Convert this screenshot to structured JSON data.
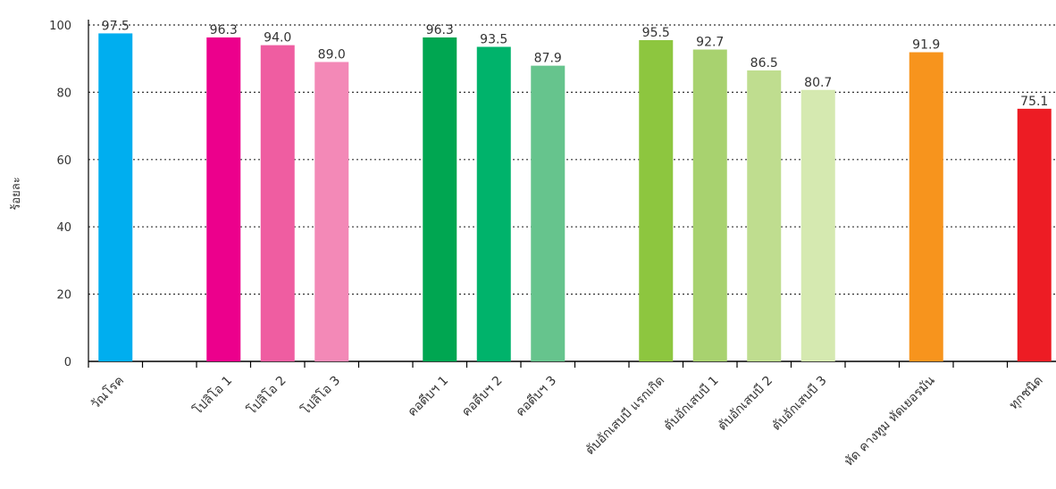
{
  "chart_data": {
    "type": "bar",
    "ylabel": "ร้อยละ",
    "xlabel": "",
    "ylim": [
      0,
      100
    ],
    "yticks": [
      0,
      20,
      40,
      60,
      80,
      100
    ],
    "grid": "dotted horizontal",
    "categories": [
      "วัณโรค",
      "โปลิโอ 1",
      "โปลิโอ 2",
      "โปลิโอ 3",
      "คอตีบฯ 1",
      "คอตีบฯ 2",
      "คอตีบฯ 3",
      "ตับอักเสบบี แรกเกิด",
      "ตับอักเสบบี 1",
      "ตับอักเสบบี 2",
      "ตับอักเสบบี 3",
      "หัด คางทูม หัดเยอรมัน",
      "ทุกชนิด"
    ],
    "values": [
      97.5,
      96.3,
      94.0,
      89.0,
      96.3,
      93.5,
      87.9,
      95.5,
      92.7,
      86.5,
      80.7,
      91.9,
      75.1
    ],
    "value_labels": [
      "97.5",
      "96.3",
      "94.0",
      "89.0",
      "96.3",
      "93.5",
      "87.9",
      "95.5",
      "92.7",
      "86.5",
      "80.7",
      "91.9",
      "75.1"
    ],
    "slots": [
      0,
      2,
      3,
      4,
      6,
      7,
      8,
      10,
      11,
      12,
      13,
      15,
      17
    ],
    "colors": [
      "#00aeef",
      "#ec008c",
      "#ef5da1",
      "#f389b7",
      "#00a651",
      "#00b36b",
      "#66c48d",
      "#8dc63f",
      "#a8d26f",
      "#bfdd8f",
      "#d5e9b0",
      "#f7941d",
      "#ed1c24"
    ]
  }
}
